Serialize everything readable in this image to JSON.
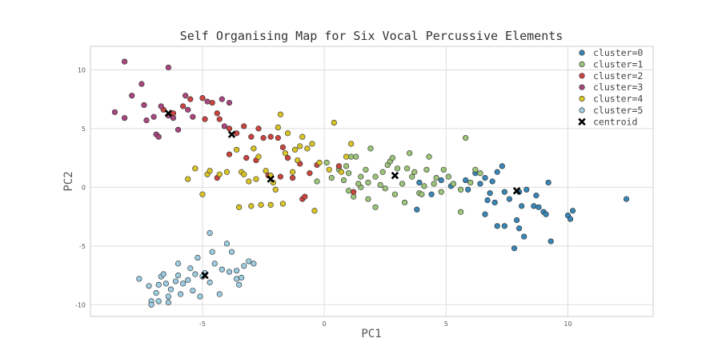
{
  "chart_data": {
    "type": "scatter",
    "title": "Self Organising Map for Six Vocal Percussive Elements",
    "xlabel": "PC1",
    "ylabel": "PC2",
    "xlim": [
      -9.6,
      13.5
    ],
    "ylim": [
      -11.0,
      12.0
    ],
    "xticks": [
      -5,
      0,
      5,
      10
    ],
    "yticks": [
      -10,
      -5,
      0,
      5,
      10
    ],
    "grid": true,
    "legend_position": "top-right",
    "series": [
      {
        "name": "cluster=0",
        "color": "#3a86b4",
        "points": [
          [
            3.8,
            -1.9
          ],
          [
            4.4,
            -0.6
          ],
          [
            5.2,
            0.1
          ],
          [
            5.8,
            0.6
          ],
          [
            6.2,
            1.2
          ],
          [
            6.6,
            0.8
          ],
          [
            6.9,
            0.5
          ],
          [
            7.1,
            1.3
          ],
          [
            7.3,
            1.8
          ],
          [
            6.4,
            0.3
          ],
          [
            6.8,
            -0.5
          ],
          [
            7.4,
            -0.4
          ],
          [
            6.7,
            -1.1
          ],
          [
            7.0,
            -1.3
          ],
          [
            7.6,
            -1.0
          ],
          [
            8.0,
            -0.4
          ],
          [
            8.3,
            -0.2
          ],
          [
            8.7,
            -0.7
          ],
          [
            8.1,
            -1.6
          ],
          [
            8.6,
            -1.6
          ],
          [
            8.8,
            -1.7
          ],
          [
            9.0,
            -2.1
          ],
          [
            9.1,
            -2.3
          ],
          [
            9.2,
            0.4
          ],
          [
            7.9,
            -2.8
          ],
          [
            7.4,
            -3.3
          ],
          [
            8.2,
            -4.2
          ],
          [
            8.0,
            -3.5
          ],
          [
            7.8,
            -5.2
          ],
          [
            9.3,
            -4.6
          ],
          [
            10.0,
            -2.4
          ],
          [
            10.2,
            -2.0
          ],
          [
            10.1,
            -2.7
          ],
          [
            6.6,
            -2.3
          ],
          [
            7.1,
            -3.3
          ],
          [
            12.4,
            -1.0
          ],
          [
            4.8,
            0.6
          ],
          [
            5.9,
            -0.2
          ],
          [
            3.9,
            0.4
          ]
        ]
      },
      {
        "name": "cluster=1",
        "color": "#9cc47a",
        "points": [
          [
            -0.3,
            0.5
          ],
          [
            0.1,
            2.1
          ],
          [
            0.6,
            1.5
          ],
          [
            0.9,
            1.8
          ],
          [
            1.0,
            1.2
          ],
          [
            1.1,
            2.6
          ],
          [
            1.3,
            2.6
          ],
          [
            1.5,
            0.9
          ],
          [
            1.7,
            1.5
          ],
          [
            1.8,
            0.4
          ],
          [
            1.9,
            3.3
          ],
          [
            2.1,
            0.9
          ],
          [
            2.3,
            0.2
          ],
          [
            2.4,
            1.3
          ],
          [
            2.6,
            1.9
          ],
          [
            2.7,
            2.2
          ],
          [
            2.8,
            2.5
          ],
          [
            3.0,
            1.6
          ],
          [
            3.2,
            0.3
          ],
          [
            3.4,
            1.6
          ],
          [
            3.5,
            2.9
          ],
          [
            3.7,
            1.3
          ],
          [
            3.9,
            -0.5
          ],
          [
            4.0,
            -0.6
          ],
          [
            4.2,
            1.5
          ],
          [
            4.3,
            2.6
          ],
          [
            4.5,
            0.3
          ],
          [
            4.6,
            0.8
          ],
          [
            4.9,
            1.5
          ],
          [
            5.1,
            0.9
          ],
          [
            5.3,
            0.3
          ],
          [
            5.6,
            -0.2
          ],
          [
            5.8,
            4.2
          ],
          [
            6.0,
            0.4
          ],
          [
            6.2,
            1.5
          ],
          [
            2.9,
            -0.6
          ],
          [
            1.2,
            -0.8
          ],
          [
            1.8,
            -1.0
          ],
          [
            2.1,
            -1.7
          ],
          [
            3.3,
            -1.3
          ],
          [
            1.5,
            0.0
          ],
          [
            0.8,
            0.6
          ],
          [
            2.5,
            -0.1
          ],
          [
            4.8,
            -0.4
          ],
          [
            5.6,
            -2.1
          ],
          [
            6.4,
            1.2
          ],
          [
            0.3,
            0.8
          ],
          [
            1.0,
            -0.3
          ],
          [
            1.4,
            0.3
          ],
          [
            3.6,
            0.9
          ],
          [
            4.1,
            0.1
          ]
        ]
      },
      {
        "name": "cluster=2",
        "color": "#c9453f",
        "points": [
          [
            -6.6,
            6.6
          ],
          [
            -6.2,
            6.3
          ],
          [
            -5.8,
            6.9
          ],
          [
            -5.5,
            7.5
          ],
          [
            -5.0,
            7.6
          ],
          [
            -4.6,
            7.2
          ],
          [
            -4.4,
            6.3
          ],
          [
            -4.9,
            5.8
          ],
          [
            -4.3,
            5.8
          ],
          [
            -3.9,
            5.0
          ],
          [
            -3.6,
            4.6
          ],
          [
            -3.3,
            5.2
          ],
          [
            -3.0,
            4.3
          ],
          [
            -2.7,
            5.0
          ],
          [
            -2.5,
            4.2
          ],
          [
            -2.2,
            4.3
          ],
          [
            -1.9,
            4.2
          ],
          [
            -1.7,
            3.4
          ],
          [
            -1.5,
            2.5
          ],
          [
            -1.0,
            2.0
          ],
          [
            -1.3,
            0.8
          ],
          [
            -0.9,
            -1.0
          ],
          [
            -0.8,
            -0.8
          ],
          [
            -0.6,
            1.2
          ],
          [
            -2.3,
            1.0
          ],
          [
            -1.8,
            0.9
          ],
          [
            -4.4,
            0.8
          ],
          [
            -3.2,
            2.5
          ],
          [
            -3.9,
            2.8
          ],
          [
            0.6,
            1.8
          ],
          [
            1.2,
            -0.4
          ],
          [
            -0.3,
            1.9
          ],
          [
            -2.8,
            2.3
          ]
        ]
      },
      {
        "name": "cluster=3",
        "color": "#a8487e",
        "points": [
          [
            -8.6,
            6.4
          ],
          [
            -8.2,
            5.9
          ],
          [
            -8.2,
            10.7
          ],
          [
            -7.9,
            7.8
          ],
          [
            -7.5,
            8.8
          ],
          [
            -7.4,
            7.0
          ],
          [
            -7.3,
            5.7
          ],
          [
            -7.0,
            6.0
          ],
          [
            -6.9,
            4.5
          ],
          [
            -6.8,
            4.3
          ],
          [
            -6.7,
            6.9
          ],
          [
            -6.4,
            6.1
          ],
          [
            -6.4,
            10.2
          ],
          [
            -6.2,
            5.9
          ],
          [
            -6.0,
            4.9
          ],
          [
            -5.7,
            7.8
          ],
          [
            -5.6,
            6.6
          ],
          [
            -5.4,
            6.0
          ],
          [
            -4.8,
            7.3
          ],
          [
            -4.2,
            7.5
          ],
          [
            -4.1,
            5.2
          ],
          [
            -3.9,
            7.2
          ]
        ]
      },
      {
        "name": "cluster=4",
        "color": "#d9c428",
        "points": [
          [
            -5.6,
            0.7
          ],
          [
            -5.3,
            1.6
          ],
          [
            -5.0,
            -0.6
          ],
          [
            -4.8,
            1.1
          ],
          [
            -4.7,
            1.4
          ],
          [
            -4.3,
            1.1
          ],
          [
            -4.0,
            1.3
          ],
          [
            -3.6,
            3.2
          ],
          [
            -3.4,
            1.3
          ],
          [
            -3.3,
            1.1
          ],
          [
            -3.1,
            0.5
          ],
          [
            -3.0,
            -1.6
          ],
          [
            -2.8,
            0.7
          ],
          [
            -2.6,
            -1.5
          ],
          [
            -2.4,
            1.4
          ],
          [
            -2.2,
            1.0
          ],
          [
            -2.1,
            0.4
          ],
          [
            -2.0,
            -0.2
          ],
          [
            -1.9,
            5.1
          ],
          [
            -1.8,
            6.2
          ],
          [
            -1.6,
            2.9
          ],
          [
            -1.5,
            4.6
          ],
          [
            -1.3,
            1.3
          ],
          [
            -1.2,
            3.2
          ],
          [
            -1.1,
            2.3
          ],
          [
            -0.9,
            4.3
          ],
          [
            -0.7,
            3.3
          ],
          [
            -0.5,
            3.7
          ],
          [
            -0.4,
            -2.0
          ],
          [
            -0.2,
            2.1
          ],
          [
            0.2,
            1.5
          ],
          [
            0.4,
            5.5
          ],
          [
            0.7,
            1.3
          ],
          [
            1.1,
            3.7
          ],
          [
            -2.2,
            -1.5
          ],
          [
            -3.5,
            -1.7
          ],
          [
            -1.7,
            -1.4
          ],
          [
            -2.7,
            2.6
          ],
          [
            0.9,
            2.6
          ],
          [
            -2.9,
            3.3
          ],
          [
            -1.0,
            3.5
          ]
        ]
      },
      {
        "name": "cluster=5",
        "color": "#9dcce0",
        "points": [
          [
            -7.6,
            -7.8
          ],
          [
            -7.2,
            -8.4
          ],
          [
            -7.1,
            -9.7
          ],
          [
            -7.1,
            -10.0
          ],
          [
            -6.9,
            -9.0
          ],
          [
            -6.8,
            -8.3
          ],
          [
            -6.7,
            -7.6
          ],
          [
            -6.5,
            -8.2
          ],
          [
            -6.4,
            -9.3
          ],
          [
            -6.4,
            -9.8
          ],
          [
            -6.3,
            -8.7
          ],
          [
            -6.1,
            -8.0
          ],
          [
            -6.0,
            -7.5
          ],
          [
            -6.0,
            -6.5
          ],
          [
            -5.9,
            -9.1
          ],
          [
            -5.8,
            -8.2
          ],
          [
            -5.6,
            -7.9
          ],
          [
            -5.5,
            -6.9
          ],
          [
            -5.4,
            -8.8
          ],
          [
            -5.3,
            -7.4
          ],
          [
            -5.1,
            -9.3
          ],
          [
            -5.0,
            -7.6
          ],
          [
            -4.9,
            -7.3
          ],
          [
            -4.7,
            -8.1
          ],
          [
            -4.7,
            -3.9
          ],
          [
            -4.6,
            -5.5
          ],
          [
            -4.5,
            -6.5
          ],
          [
            -4.3,
            -9.1
          ],
          [
            -4.2,
            -7.0
          ],
          [
            -4.0,
            -4.8
          ],
          [
            -3.9,
            -7.2
          ],
          [
            -3.8,
            -5.5
          ],
          [
            -3.6,
            -7.1
          ],
          [
            -3.5,
            -8.3
          ],
          [
            -3.4,
            -7.7
          ],
          [
            -3.3,
            -6.7
          ],
          [
            -3.1,
            -6.3
          ],
          [
            -2.9,
            -6.5
          ],
          [
            -3.6,
            -7.8
          ],
          [
            -6.6,
            -7.4
          ],
          [
            -5.2,
            -6.0
          ],
          [
            -6.8,
            -9.7
          ]
        ]
      }
    ],
    "centroids": {
      "name": "centroid",
      "points": [
        [
          -6.4,
          6.3
        ],
        [
          -3.8,
          4.5
        ],
        [
          -2.2,
          0.7
        ],
        [
          2.9,
          1.0
        ],
        [
          7.9,
          -0.3
        ],
        [
          -4.9,
          -7.5
        ]
      ]
    }
  }
}
